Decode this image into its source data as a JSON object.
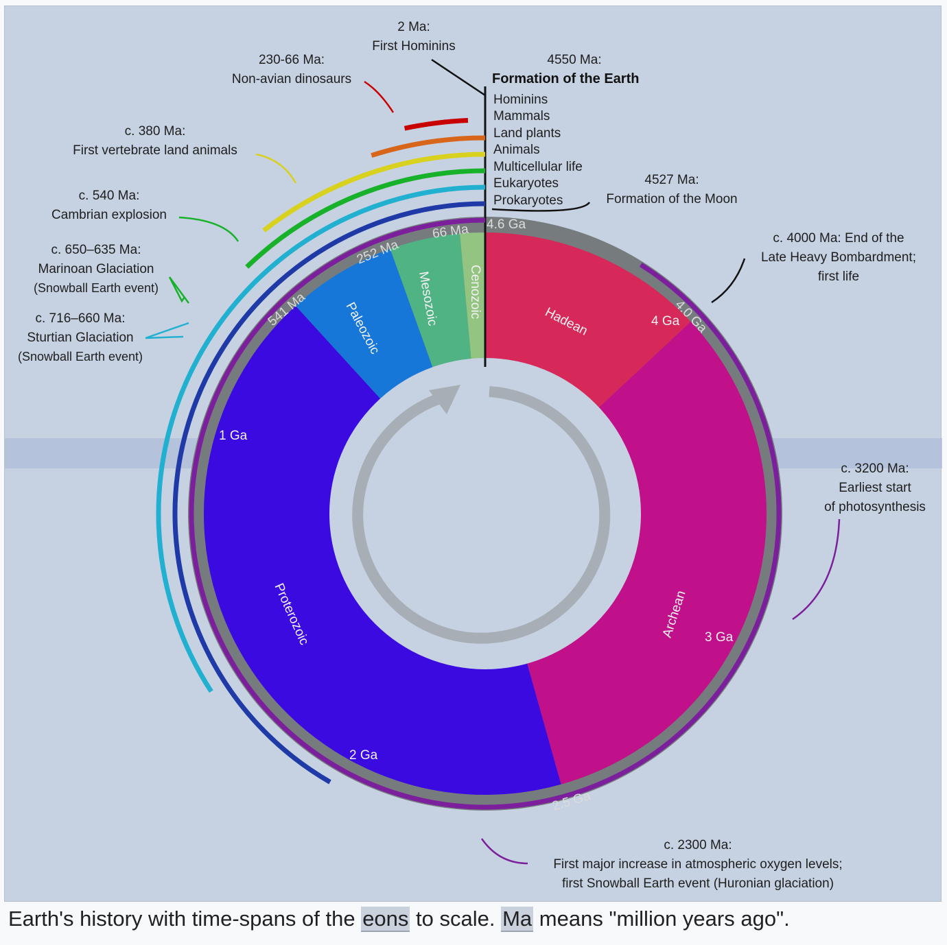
{
  "caption": {
    "pre": "Earth's history with time-spans of the ",
    "link1": "eons",
    "mid": " to scale. ",
    "link2": "Ma",
    "post": " means \"million years ago\"."
  },
  "eras": [
    {
      "name": "Hadean",
      "start": 4.6,
      "end": 4.0,
      "color": "#d7285a"
    },
    {
      "name": "Archean",
      "start": 4.0,
      "end": 2.5,
      "color": "#c0108a"
    },
    {
      "name": "Proterozoic",
      "start": 2.5,
      "end": 0.541,
      "color": "#3b0ae0"
    },
    {
      "name": "Paleozoic",
      "start": 0.541,
      "end": 0.252,
      "color": "#1677d8"
    },
    {
      "name": "Mesozoic",
      "start": 0.252,
      "end": 0.066,
      "color": "#4fb383"
    },
    {
      "name": "Cenozoic",
      "start": 0.066,
      "end": 0,
      "color": "#93c481"
    }
  ],
  "ring_labels": [
    "4.6 Ga",
    "4.0 Ga",
    "2.5 Ga",
    "541 Ma",
    "252 Ma",
    "66 Ma"
  ],
  "tick_labels": [
    "4 Ga",
    "3 Ga",
    "2 Ga",
    "1 Ga"
  ],
  "life_arcs": [
    {
      "name": "Hominins",
      "color": "#c80000"
    },
    {
      "name": "Mammals",
      "color": "#d8661a"
    },
    {
      "name": "Land plants",
      "color": "#d8d21e"
    },
    {
      "name": "Animals",
      "color": "#18b22a"
    },
    {
      "name": "Multicellular life",
      "color": "#22b0d0"
    },
    {
      "name": "Eukaryotes",
      "color": "#1f3aa6"
    },
    {
      "name": "Prokaryotes",
      "color": "#7b1f9c"
    }
  ],
  "annotations": {
    "hominins": [
      "2 Ma:",
      "First Hominins"
    ],
    "dinosaurs": [
      "230-66 Ma:",
      "Non-avian dinosaurs"
    ],
    "earth": [
      "4550 Ma:",
      "Formation of the Earth"
    ],
    "moon": [
      "4527 Ma:",
      "Formation of the Moon"
    ],
    "land_animals": [
      "c. 380 Ma:",
      "First vertebrate land animals"
    ],
    "cambrian": [
      "c. 540 Ma:",
      "Cambrian explosion"
    ],
    "marinoan": [
      "c. 650–635 Ma:",
      "Marinoan Glaciation",
      "(Snowball Earth event)"
    ],
    "sturtian": [
      "c. 716–660 Ma:",
      "Sturtian Glaciation",
      "(Snowball Earth event)"
    ],
    "lhb": [
      "c. 4000 Ma: End of the",
      "Late Heavy Bombardment;",
      "first life"
    ],
    "photosynthesis": [
      "c. 3200 Ma:",
      "Earliest start",
      "of photosynthesis"
    ],
    "oxygen": [
      "c. 2300 Ma:",
      "First major increase in atmospheric oxygen levels;",
      "first Snowball Earth event (Huronian glaciation)"
    ]
  }
}
